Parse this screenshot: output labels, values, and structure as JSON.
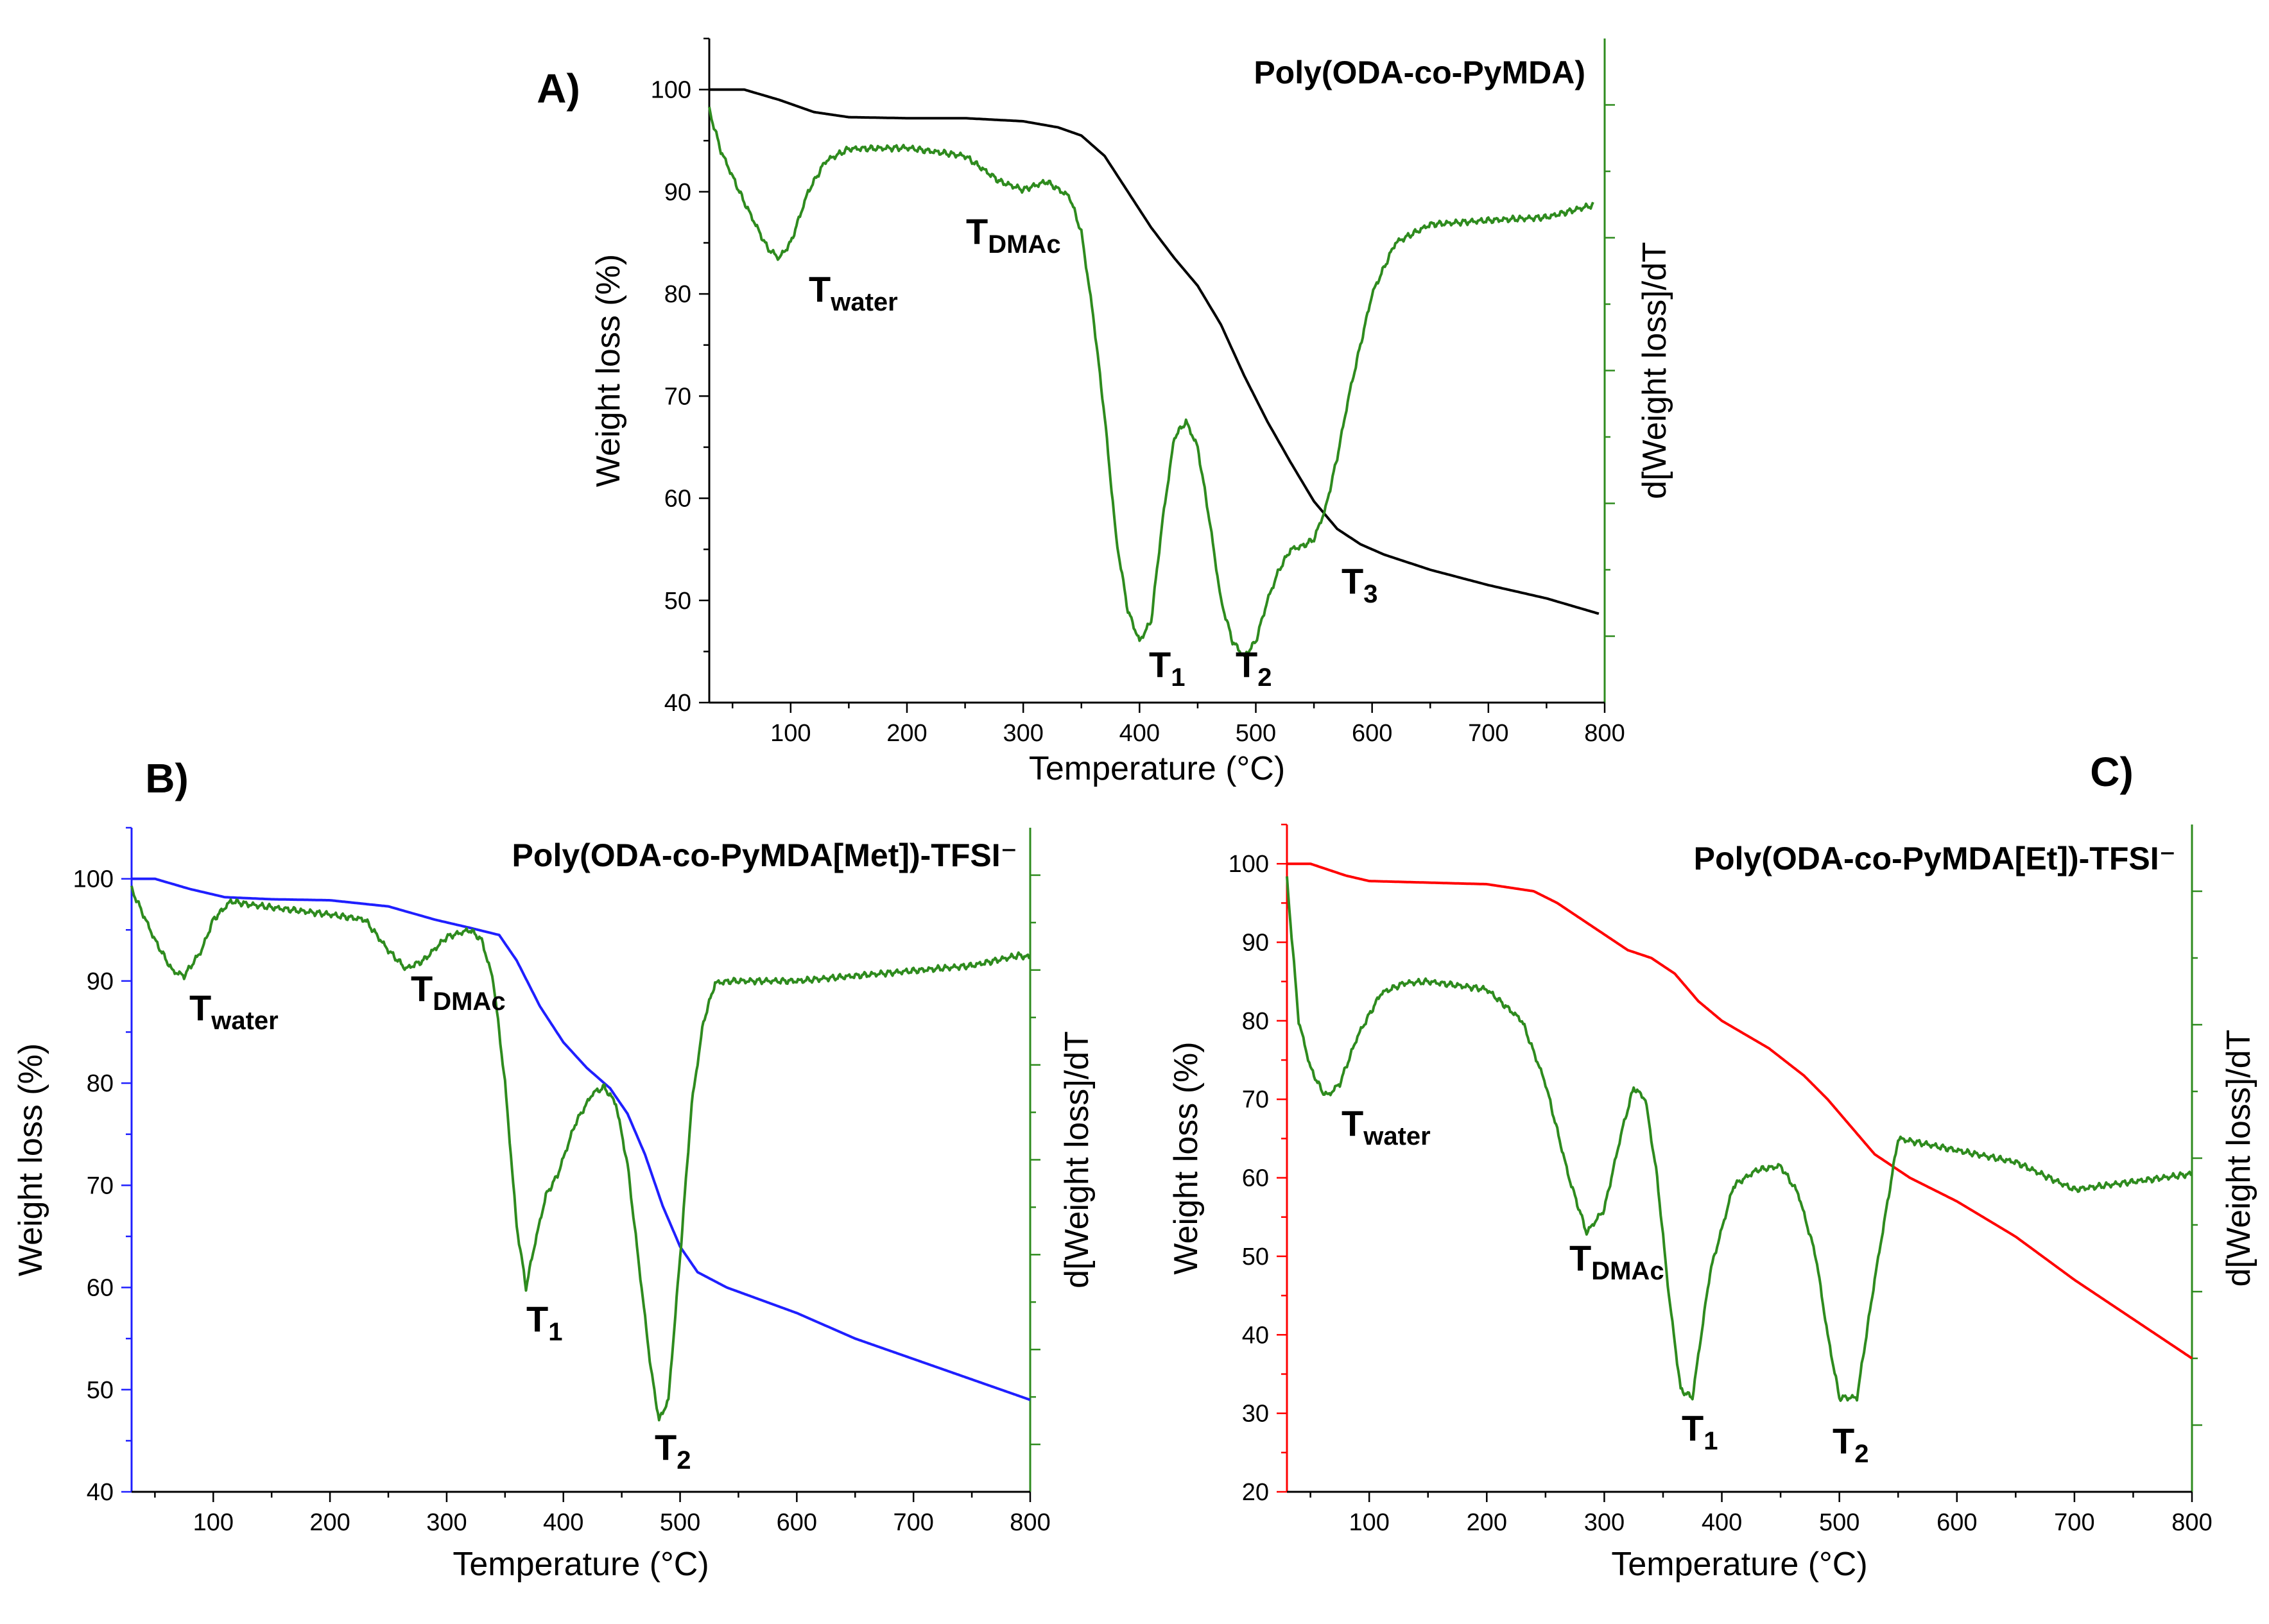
{
  "chart_data": [
    {
      "type": "line",
      "panel_label": "A)",
      "title": "Poly(ODA-co-PyMDA)",
      "xlabel": "Temperature (°C)",
      "ylabel": "Weight loss (%)",
      "y2label": "d[Weight loss]/dT",
      "xlim": [
        30,
        800
      ],
      "ylim": [
        40,
        105
      ],
      "xticks": [
        100,
        200,
        300,
        400,
        500,
        600,
        700,
        800
      ],
      "yticks": [
        40,
        50,
        60,
        70,
        80,
        90,
        100
      ],
      "y2_tick_count": 5,
      "colors": {
        "weight": "#000000",
        "deriv": "#2e8b1e",
        "left_axis": "#000000",
        "right_axis": "#2e8b1e"
      },
      "series": [
        {
          "name": "Weight loss",
          "color": "#000000",
          "noise": 0,
          "x": [
            30,
            60,
            90,
            120,
            150,
            200,
            250,
            300,
            330,
            350,
            370,
            390,
            410,
            430,
            450,
            470,
            490,
            510,
            530,
            550,
            570,
            590,
            610,
            650,
            700,
            750,
            795
          ],
          "y": [
            100,
            100,
            99,
            97.8,
            97.3,
            97.2,
            97.2,
            96.9,
            96.3,
            95.5,
            93.5,
            90,
            86.5,
            83.5,
            80.8,
            77,
            72,
            67.5,
            63.5,
            59.7,
            57,
            55.5,
            54.5,
            53,
            51.5,
            50.2,
            48.7
          ]
        },
        {
          "name": "d[Weight loss]/dT",
          "color": "#2e8b1e",
          "noise": 0.35,
          "x": [
            30,
            40,
            60,
            80,
            90,
            100,
            115,
            130,
            150,
            200,
            250,
            280,
            300,
            320,
            340,
            350,
            360,
            370,
            380,
            390,
            400,
            410,
            420,
            430,
            440,
            450,
            460,
            470,
            480,
            490,
            500,
            510,
            520,
            530,
            540,
            550,
            560,
            570,
            580,
            590,
            600,
            620,
            650,
            700,
            750,
            790
          ],
          "y": [
            98,
            94,
            89,
            84.5,
            83.5,
            85,
            90,
            93,
            94.2,
            94.3,
            93.5,
            91,
            90.2,
            91,
            89.5,
            86,
            78,
            68,
            56,
            49,
            46,
            48,
            58,
            66,
            67.5,
            65,
            58,
            50,
            46,
            44.5,
            46,
            50,
            53,
            55,
            55.3,
            56,
            59,
            64,
            70,
            75,
            80,
            85,
            86.8,
            87.2,
            87.5,
            88.7
          ]
        }
      ],
      "annotations": [
        {
          "base": "T",
          "sub": "water"
        },
        {
          "base": "T",
          "sub": "DMAc"
        },
        {
          "base": "T",
          "sub": "1"
        },
        {
          "base": "T",
          "sub": "2"
        },
        {
          "base": "T",
          "sub": "3"
        }
      ]
    },
    {
      "type": "line",
      "panel_label": "B)",
      "title": "Poly(ODA-co-PyMDA[Met])-TFSI⁻",
      "xlabel": "Temperature (°C)",
      "ylabel": "Weight loss (%)",
      "y2label": "d[Weight loss]/dT",
      "xlim": [
        30,
        800
      ],
      "ylim": [
        40,
        105
      ],
      "xticks": [
        100,
        200,
        300,
        400,
        500,
        600,
        700,
        800
      ],
      "yticks": [
        40,
        50,
        60,
        70,
        80,
        90,
        100
      ],
      "y2_tick_count": 7,
      "colors": {
        "weight": "#1f1fff",
        "deriv": "#2e8b1e",
        "left_axis": "#1f1fff",
        "right_axis": "#2e8b1e"
      },
      "series": [
        {
          "name": "Weight loss",
          "color": "#1f1fff",
          "noise": 0,
          "x": [
            30,
            50,
            80,
            110,
            150,
            200,
            250,
            290,
            320,
            345,
            360,
            380,
            400,
            420,
            440,
            455,
            470,
            485,
            500,
            515,
            540,
            600,
            650,
            700,
            750,
            800
          ],
          "y": [
            100,
            100,
            99,
            98.2,
            98,
            97.9,
            97.3,
            96,
            95.2,
            94.5,
            92,
            87.5,
            84,
            81.5,
            79.5,
            77,
            73,
            68,
            64,
            61.5,
            60,
            57.5,
            55,
            53,
            51,
            49
          ]
        },
        {
          "name": "d[Weight loss]/dT",
          "color": "#2e8b1e",
          "noise": 0.35,
          "x": [
            30,
            50,
            65,
            75,
            90,
            100,
            115,
            130,
            150,
            200,
            230,
            250,
            265,
            280,
            300,
            320,
            330,
            340,
            350,
            360,
            368,
            375,
            385,
            395,
            410,
            425,
            435,
            445,
            455,
            465,
            475,
            482,
            490,
            500,
            510,
            520,
            530,
            545,
            600,
            650,
            700,
            750,
            790,
            800
          ],
          "y": [
            99,
            94,
            91,
            90.5,
            93,
            96,
            97.8,
            97.5,
            97.2,
            96.5,
            96,
            93,
            91.2,
            92,
            94.3,
            95,
            94,
            90,
            80,
            66,
            60,
            64,
            69,
            71,
            76,
            79,
            79.6,
            78,
            72,
            62,
            52,
            47,
            49,
            63,
            78,
            86,
            89.8,
            90,
            90,
            90.5,
            91,
            91.5,
            92.5,
            92.3
          ]
        }
      ],
      "annotations": [
        {
          "base": "T",
          "sub": "water"
        },
        {
          "base": "T",
          "sub": "DMAc"
        },
        {
          "base": "T",
          "sub": "1"
        },
        {
          "base": "T",
          "sub": "2"
        }
      ]
    },
    {
      "type": "line",
      "panel_label": "C)",
      "title": "Poly(ODA-co-PyMDA[Et])-TFSI⁻",
      "xlabel": "Temperature (°C)",
      "ylabel": "Weight loss (%)",
      "y2label": "d[Weight loss]/dT",
      "xlim": [
        30,
        800
      ],
      "ylim": [
        20,
        105
      ],
      "xticks": [
        100,
        200,
        300,
        400,
        500,
        600,
        700,
        800
      ],
      "yticks": [
        20,
        30,
        40,
        50,
        60,
        70,
        80,
        90,
        100
      ],
      "y2_tick_count": 5,
      "colors": {
        "weight": "#ff0000",
        "deriv": "#2e8b1e",
        "left_axis": "#ff0000",
        "right_axis": "#2e8b1e"
      },
      "series": [
        {
          "name": "Weight loss",
          "color": "#ff0000",
          "noise": 0,
          "x": [
            30,
            50,
            80,
            100,
            150,
            200,
            240,
            260,
            280,
            300,
            320,
            340,
            360,
            380,
            400,
            440,
            470,
            490,
            510,
            530,
            560,
            600,
            650,
            700,
            750,
            800
          ],
          "y": [
            100,
            100,
            98.5,
            97.8,
            97.6,
            97.4,
            96.5,
            95,
            93,
            91,
            89,
            88,
            86,
            82.5,
            80,
            76.5,
            73,
            70,
            66.5,
            63,
            60,
            57,
            52.5,
            47,
            42,
            37
          ]
        },
        {
          "name": "d[Weight loss]/dT",
          "color": "#2e8b1e",
          "noise": 0.45,
          "x": [
            30,
            40,
            50,
            60,
            65,
            75,
            90,
            110,
            130,
            150,
            200,
            230,
            250,
            270,
            285,
            300,
            315,
            325,
            335,
            345,
            355,
            365,
            375,
            390,
            410,
            430,
            450,
            465,
            480,
            490,
            500,
            515,
            530,
            550,
            600,
            650,
            700,
            750,
            800
          ],
          "y": [
            98,
            80,
            74,
            71,
            70.5,
            72,
            78,
            83.5,
            84.8,
            85,
            84,
            80,
            72,
            60,
            53,
            56,
            66,
            71.5,
            70,
            60,
            45,
            33,
            32,
            48,
            59,
            61,
            61.5,
            58,
            50,
            40,
            32,
            32,
            47,
            65,
            63.5,
            62,
            58.5,
            59.5,
            60.5
          ]
        }
      ],
      "annotations": [
        {
          "base": "T",
          "sub": "water"
        },
        {
          "base": "T",
          "sub": "DMAc"
        },
        {
          "base": "T",
          "sub": "1"
        },
        {
          "base": "T",
          "sub": "2"
        }
      ]
    }
  ]
}
